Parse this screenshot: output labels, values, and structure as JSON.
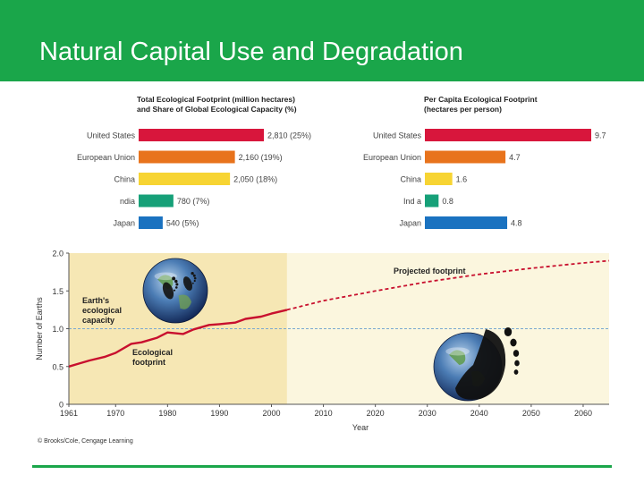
{
  "page": {
    "title": "Natural Capital Use and Degradation",
    "accent_color": "#1aa64a",
    "credit": "© Brooks/Cole, Cengage Learning"
  },
  "chart_data": [
    {
      "type": "bar",
      "orientation": "horizontal",
      "title": "Total Ecological Footprint (million hectares) and Share of Global Ecological Capacity (%)",
      "categories": [
        "United States",
        "European Union",
        "China",
        "India",
        "Japan"
      ],
      "category_labels": [
        "United States",
        "European Union",
        "China",
        "ndia",
        "Japan"
      ],
      "values": [
        2810,
        2160,
        2050,
        780,
        540
      ],
      "value_labels": [
        "2,810 (25%)",
        "2,160 (19%)",
        "2,050 (18%)",
        "780 (7%)",
        "540 (5%)"
      ],
      "colors": [
        "#d8163c",
        "#e8731c",
        "#f7d433",
        "#16a078",
        "#1a72c0"
      ],
      "xlim": [
        0,
        2810
      ]
    },
    {
      "type": "bar",
      "orientation": "horizontal",
      "title": "Per Capita Ecological Footprint (hectares per person)",
      "categories": [
        "United States",
        "European Union",
        "China",
        "India",
        "Japan"
      ],
      "category_labels": [
        "United States",
        "European Union",
        "China",
        "Ind a",
        "Japan"
      ],
      "values": [
        9.7,
        4.7,
        1.6,
        0.8,
        4.8
      ],
      "value_labels": [
        "9.7",
        "4.7",
        "1.6",
        "0.8",
        "4.8"
      ],
      "colors": [
        "#d8163c",
        "#e8731c",
        "#f7d433",
        "#16a078",
        "#1a72c0"
      ],
      "xlim": [
        0,
        9.7
      ]
    },
    {
      "type": "line",
      "xlabel": "Year",
      "ylabel": "Number of Earths",
      "xlim": [
        1961,
        2065
      ],
      "ylim": [
        0,
        2.0
      ],
      "x_ticks": [
        1961,
        1970,
        1980,
        1990,
        2000,
        2010,
        2020,
        2030,
        2040,
        2050,
        2060
      ],
      "y_ticks": [
        0,
        0.5,
        1.0,
        1.5,
        2.0
      ],
      "y_tick_labels": [
        "0",
        "0.5",
        "1.0",
        "1.5",
        "2.0"
      ],
      "historical_region_end": 2003,
      "reference_line": {
        "y": 1.0,
        "label": "Earth's ecological capacity"
      },
      "series": [
        {
          "name": "Ecological footprint",
          "style": "solid",
          "color": "#c8102e",
          "x": [
            1961,
            1963,
            1965,
            1968,
            1970,
            1973,
            1975,
            1978,
            1980,
            1983,
            1985,
            1988,
            1990,
            1993,
            1995,
            1998,
            2000,
            2003
          ],
          "y": [
            0.5,
            0.54,
            0.58,
            0.63,
            0.68,
            0.8,
            0.82,
            0.88,
            0.95,
            0.93,
            0.99,
            1.05,
            1.06,
            1.08,
            1.13,
            1.16,
            1.2,
            1.25
          ]
        },
        {
          "name": "Projected footprint",
          "style": "dashed",
          "color": "#c8102e",
          "x": [
            2003,
            2010,
            2020,
            2030,
            2040,
            2050,
            2060,
            2065
          ],
          "y": [
            1.25,
            1.37,
            1.5,
            1.62,
            1.72,
            1.8,
            1.87,
            1.9
          ]
        }
      ],
      "annotations": [
        {
          "text": [
            "Earth's",
            "ecological",
            "capacity"
          ]
        },
        {
          "text": [
            "Ecological",
            "footprint"
          ]
        },
        {
          "text": [
            "Projected footprint"
          ]
        }
      ]
    }
  ]
}
